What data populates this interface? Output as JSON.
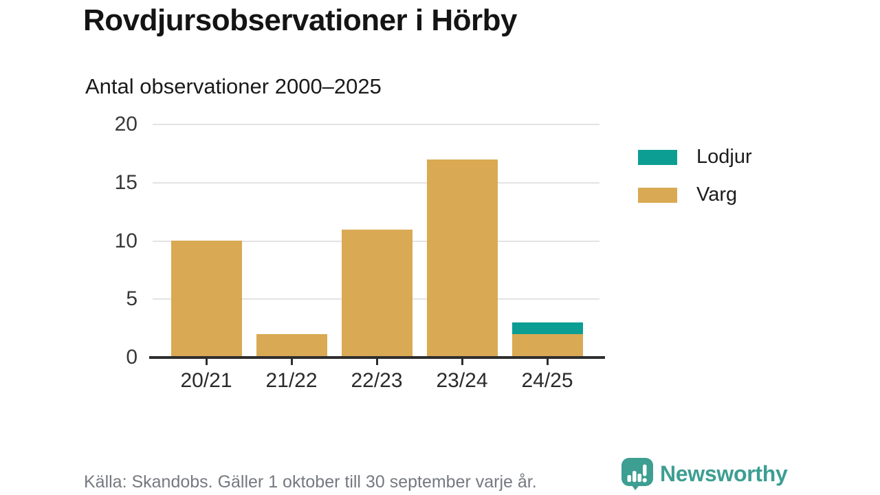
{
  "title": "Rovdjursobservationer i Hörby",
  "subtitle": "Antal observationer 2000–2025",
  "legend": [
    {
      "label": "Lodjur",
      "color": "#0c9e93"
    },
    {
      "label": "Varg",
      "color": "#d9a953"
    }
  ],
  "chart_data": {
    "type": "bar",
    "stacked": true,
    "title": "Rovdjursobservationer i Hörby",
    "subtitle": "Antal observationer 2000–2025",
    "categories": [
      "20/21",
      "21/22",
      "22/23",
      "23/24",
      "24/25"
    ],
    "series": [
      {
        "name": "Varg",
        "color": "#d9a953",
        "values": [
          10,
          2,
          11,
          17,
          2
        ]
      },
      {
        "name": "Lodjur",
        "color": "#0c9e93",
        "values": [
          0,
          0,
          0,
          0,
          1
        ]
      }
    ],
    "xlabel": "",
    "ylabel": "",
    "ylim": [
      0,
      20
    ],
    "yticks": [
      0,
      5,
      10,
      15,
      20
    ],
    "grid": "horizontal",
    "legend_position": "right"
  },
  "footer": {
    "source": "Källa: Skandobs. Gäller 1 oktober till 30 september varje år.",
    "brand": "Newsworthy",
    "brand_color": "#3d9e92"
  }
}
